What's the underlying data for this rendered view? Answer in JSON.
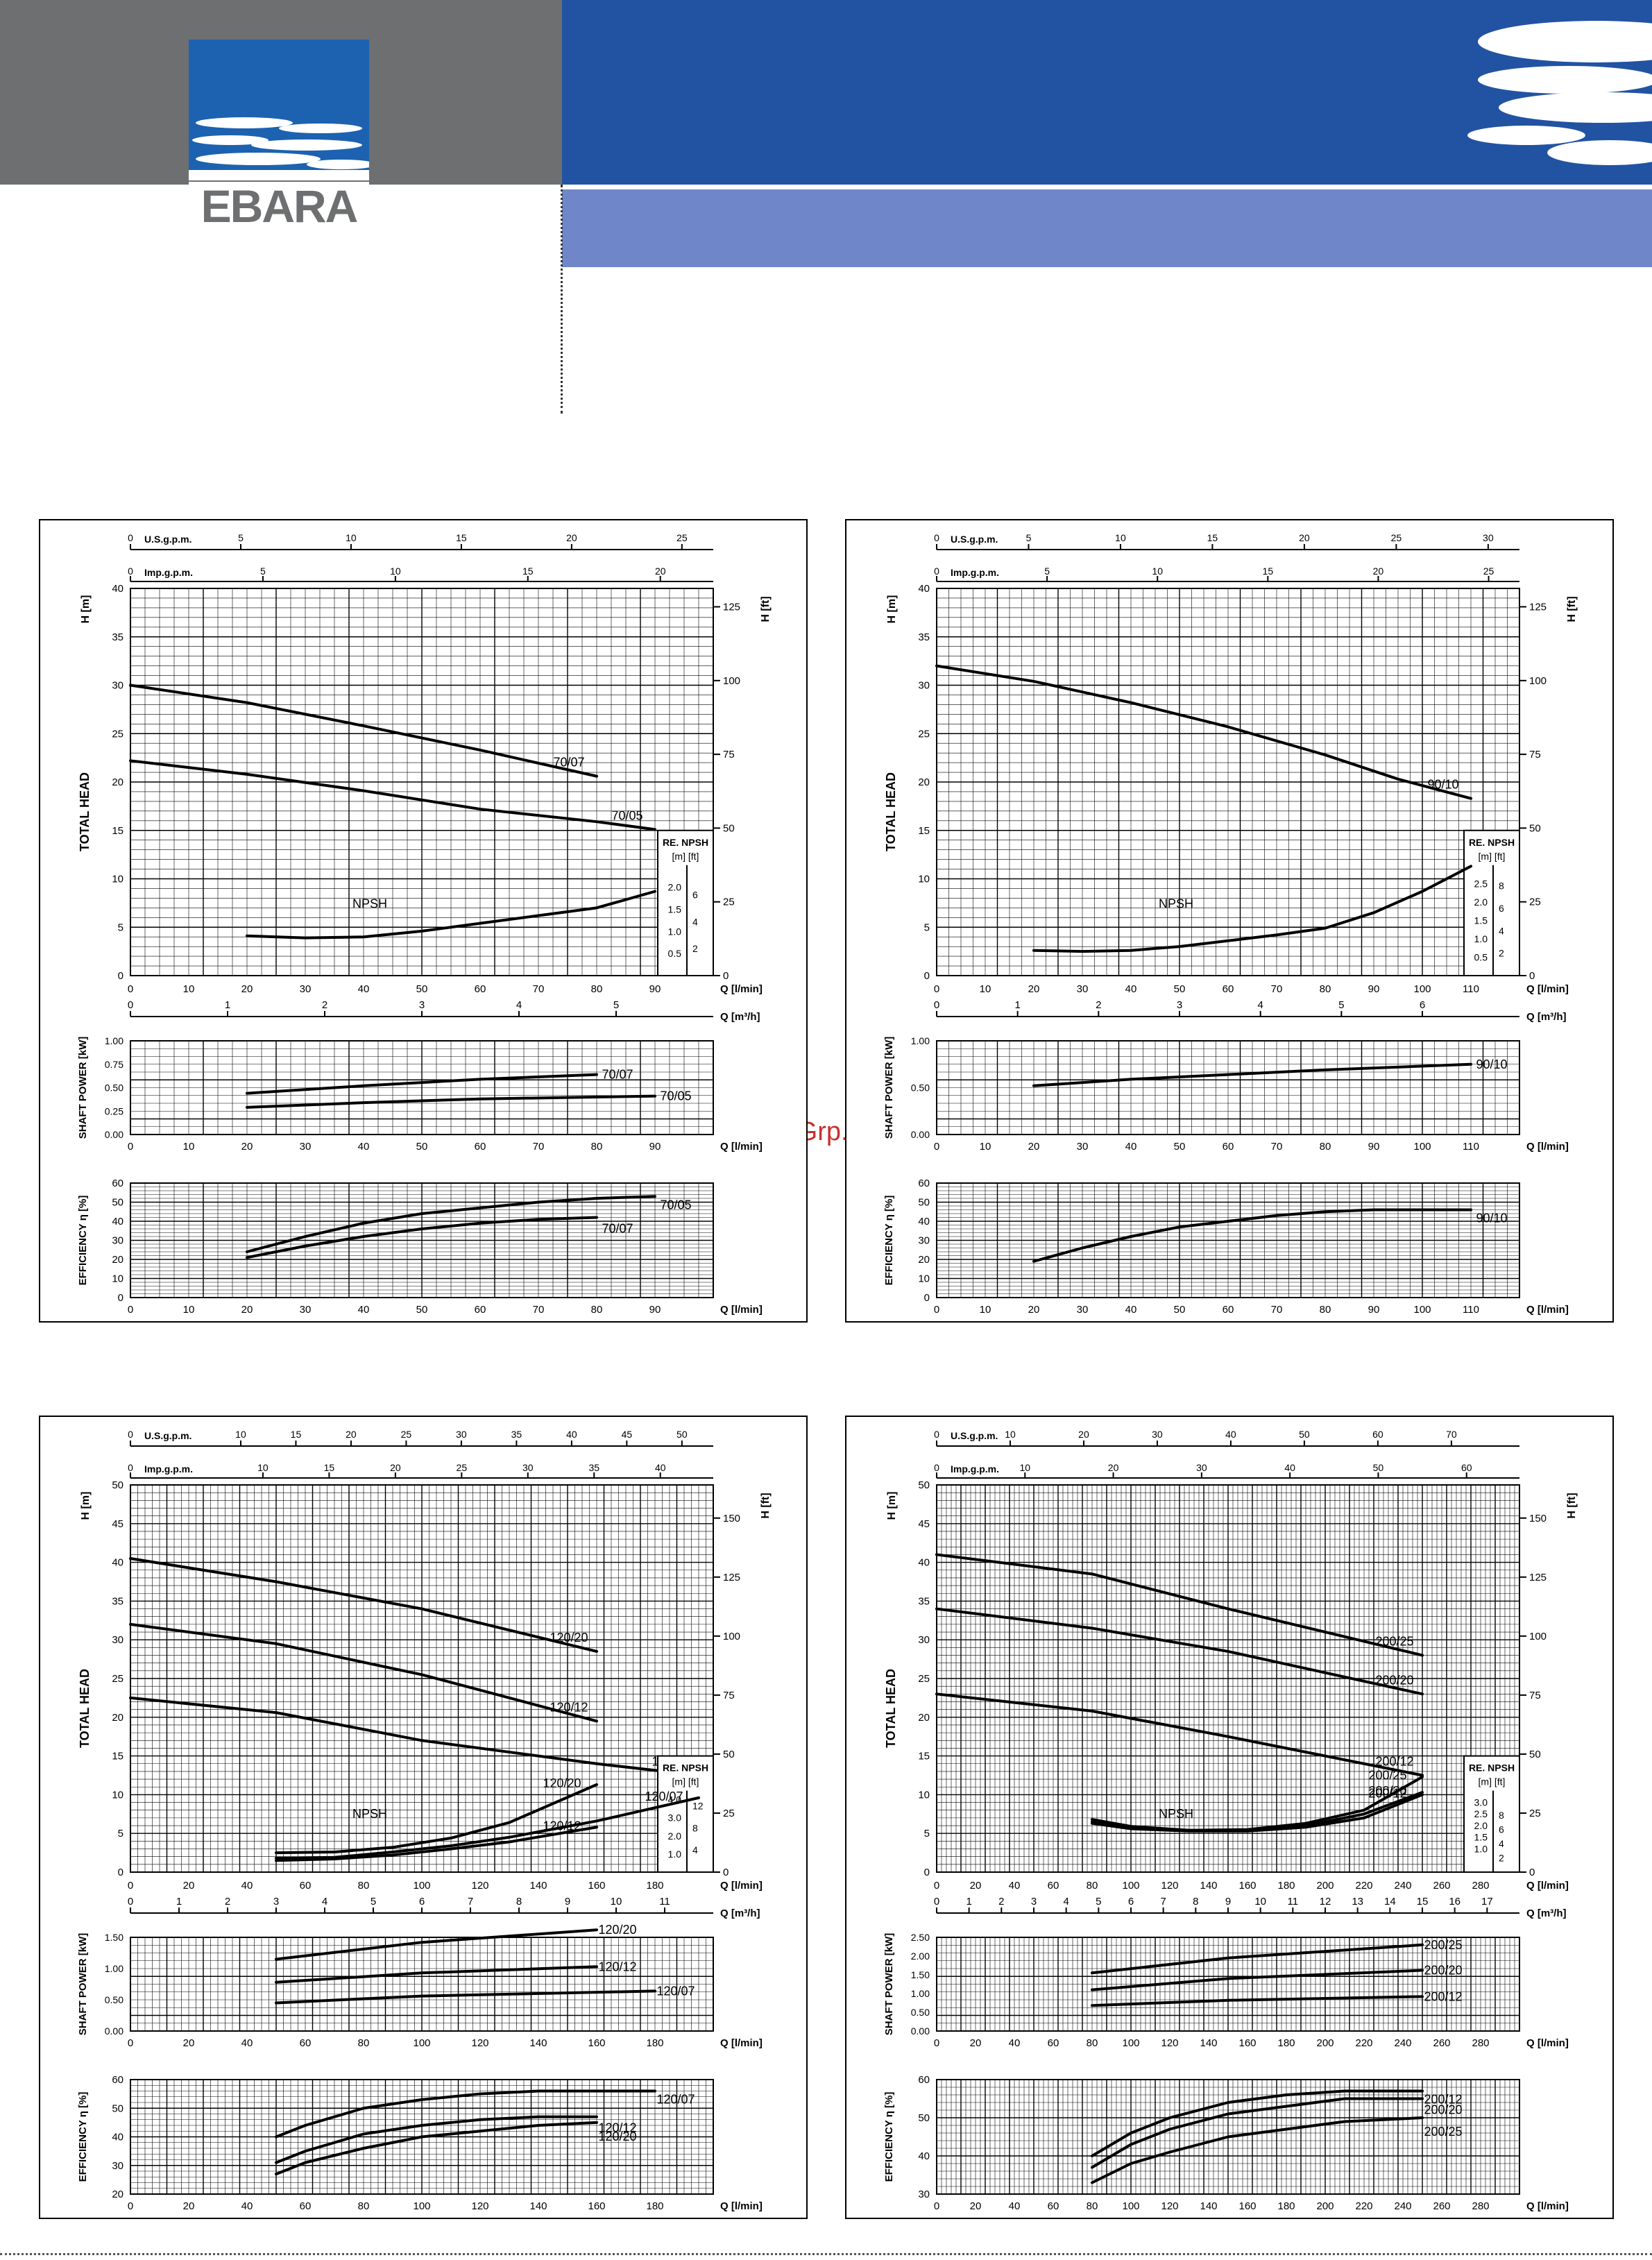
{
  "brand": {
    "logo_text": "EBARA",
    "logo_color": "#1c62b0",
    "band_blue": "#2253a3",
    "band_light": "#6f86c8",
    "band_grey": "#6e6f71"
  },
  "watermark": "McGrp.Ru",
  "labels": {
    "usgpm": "U.S.g.p.m.",
    "impgpm": "Imp.g.p.m.",
    "h_m": "H [m]",
    "h_ft": "H [ft]",
    "total_head": "TOTAL HEAD",
    "q_lmin": "Q [l/min]",
    "q_m3h": "Q [m³/h]",
    "shaft_power": "SHAFT POWER [kW]",
    "efficiency": "EFFICIENCY η [%]",
    "npsh": "NPSH",
    "re_npsh": "RE. NPSH",
    "npsh_units": "[m] [ft]"
  },
  "chart_data": [
    {
      "type": "line",
      "q_range": [
        0,
        100
      ],
      "q_ticks": [
        0,
        10,
        20,
        30,
        40,
        50,
        60,
        70,
        80,
        90
      ],
      "usgpm_ticks": [
        0,
        5,
        10,
        15,
        20,
        25
      ],
      "impgpm_ticks": [
        0,
        5,
        10,
        15,
        20
      ],
      "m3h_ticks": [
        0,
        1,
        2,
        3,
        4,
        5
      ],
      "head": {
        "ylim": [
          0,
          40
        ],
        "ticks": [
          0,
          5,
          10,
          15,
          20,
          25,
          30,
          35,
          40
        ],
        "ft_ticks": [
          0,
          25,
          50,
          75,
          100,
          125
        ],
        "series": [
          {
            "name": "70/07",
            "x": [
              0,
              20,
              40,
              60,
              80
            ],
            "y": [
              30,
              28.2,
              25.8,
              23.3,
              20.6
            ]
          },
          {
            "name": "70/05",
            "x": [
              0,
              20,
              40,
              60,
              80,
              90
            ],
            "y": [
              22.2,
              20.8,
              19.1,
              17.2,
              15.9,
              15.1
            ]
          }
        ]
      },
      "npsh": {
        "x": [
          20,
          30,
          40,
          50,
          60,
          70,
          80,
          90
        ],
        "y": [
          4.1,
          3.9,
          4.0,
          4.6,
          5.4,
          6.2,
          7.0,
          8.7
        ],
        "ticks": [
          0.5,
          1.0,
          1.5,
          2.0
        ],
        "ft_ticks": [
          2,
          4,
          6
        ]
      },
      "power": {
        "ylim": [
          0,
          1.0
        ],
        "ticks": [
          0,
          0.25,
          0.5,
          0.75,
          1.0
        ],
        "series": [
          {
            "name": "70/07",
            "x": [
              20,
              40,
              60,
              80
            ],
            "y": [
              0.44,
              0.52,
              0.59,
              0.64
            ]
          },
          {
            "name": "70/05",
            "x": [
              20,
              40,
              60,
              80,
              90
            ],
            "y": [
              0.29,
              0.34,
              0.38,
              0.4,
              0.41
            ]
          }
        ]
      },
      "efficiency": {
        "ylim": [
          0,
          60
        ],
        "ticks": [
          0,
          10,
          20,
          30,
          40,
          50,
          60
        ],
        "series": [
          {
            "name": "70/05",
            "x": [
              20,
              30,
              40,
              50,
              60,
              70,
              80,
              90
            ],
            "y": [
              24,
              32,
              39,
              44,
              47,
              50,
              52,
              53
            ]
          },
          {
            "name": "70/07",
            "x": [
              20,
              30,
              40,
              50,
              60,
              70,
              80
            ],
            "y": [
              21,
              27,
              32,
              36,
              39,
              41,
              42
            ]
          }
        ]
      }
    },
    {
      "type": "line",
      "q_range": [
        0,
        120
      ],
      "q_ticks": [
        0,
        10,
        20,
        30,
        40,
        50,
        60,
        70,
        80,
        90,
        100,
        110
      ],
      "usgpm_ticks": [
        0,
        5,
        10,
        15,
        20,
        25,
        30
      ],
      "impgpm_ticks": [
        0,
        5,
        10,
        15,
        20,
        25
      ],
      "m3h_ticks": [
        0,
        1,
        2,
        3,
        4,
        5,
        6
      ],
      "head": {
        "ylim": [
          0,
          40
        ],
        "ticks": [
          0,
          5,
          10,
          15,
          20,
          25,
          30,
          35,
          40
        ],
        "ft_ticks": [
          0,
          25,
          50,
          75,
          100,
          125
        ],
        "series": [
          {
            "name": "90/10",
            "x": [
              0,
              20,
              40,
              60,
              80,
              95,
              110
            ],
            "y": [
              32,
              30.4,
              28.2,
              25.7,
              22.8,
              20.3,
              18.3
            ]
          }
        ]
      },
      "npsh": {
        "x": [
          20,
          30,
          40,
          50,
          60,
          70,
          80,
          90,
          100,
          110
        ],
        "y": [
          2.6,
          2.5,
          2.6,
          3.0,
          3.6,
          4.2,
          4.9,
          6.5,
          8.7,
          11.3
        ],
        "ticks": [
          0.5,
          1.0,
          1.5,
          2.0,
          2.5
        ],
        "ft_ticks": [
          2,
          4,
          6,
          8
        ]
      },
      "power": {
        "ylim": [
          0,
          1.0
        ],
        "ticks": [
          0,
          0.5,
          1.0
        ],
        "series": [
          {
            "name": "90/10",
            "x": [
              20,
              40,
              60,
              80,
              110
            ],
            "y": [
              0.52,
              0.59,
              0.64,
              0.69,
              0.75
            ]
          }
        ]
      },
      "efficiency": {
        "ylim": [
          0,
          60
        ],
        "ticks": [
          0,
          10,
          20,
          30,
          40,
          50,
          60
        ],
        "series": [
          {
            "name": "90/10",
            "x": [
              20,
              30,
              40,
              50,
              60,
              70,
              80,
              90,
              100,
              110
            ],
            "y": [
              19,
              26,
              32,
              37,
              40,
              43,
              45,
              46,
              46,
              46
            ]
          }
        ]
      }
    },
    {
      "type": "line",
      "q_range": [
        0,
        200
      ],
      "q_ticks": [
        0,
        20,
        40,
        60,
        80,
        100,
        120,
        140,
        160,
        180
      ],
      "usgpm_ticks": [
        0,
        10,
        15,
        20,
        25,
        30,
        35,
        40,
        45,
        50
      ],
      "impgpm_ticks": [
        0,
        10,
        15,
        20,
        25,
        30,
        35,
        40
      ],
      "m3h_ticks": [
        0,
        1,
        2,
        3,
        4,
        5,
        6,
        7,
        8,
        9,
        10,
        11
      ],
      "head": {
        "ylim": [
          0,
          50
        ],
        "ticks": [
          0,
          5,
          10,
          15,
          20,
          25,
          30,
          35,
          40,
          45,
          50
        ],
        "ft_ticks": [
          0,
          25,
          50,
          75,
          100,
          125,
          150
        ],
        "series": [
          {
            "name": "120/20",
            "x": [
              0,
              50,
              100,
              160
            ],
            "y": [
              40.5,
              37.5,
              34,
              28.5
            ]
          },
          {
            "name": "120/12",
            "x": [
              0,
              50,
              100,
              160
            ],
            "y": [
              32,
              29.5,
              25.5,
              19.5
            ]
          },
          {
            "name": "120/07",
            "x": [
              0,
              50,
              100,
              160,
              195
            ],
            "y": [
              22.5,
              20.6,
              17,
              14,
              12.5
            ]
          }
        ]
      },
      "npsh_series": [
        {
          "name": "120/20",
          "x": [
            50,
            70,
            90,
            110,
            130,
            160
          ],
          "y": [
            2.5,
            2.6,
            3.2,
            4.4,
            6.4,
            11.3
          ]
        },
        {
          "name": "120/07",
          "x": [
            50,
            70,
            90,
            110,
            130,
            160,
            195
          ],
          "y": [
            1.8,
            1.9,
            2.6,
            3.4,
            4.5,
            6.6,
            9.6
          ]
        },
        {
          "name": "120/12",
          "x": [
            50,
            70,
            90,
            110,
            130,
            160
          ],
          "y": [
            1.5,
            1.7,
            2.2,
            3.0,
            3.9,
            5.8
          ]
        }
      ],
      "npsh_ticks": [
        1.0,
        2.0,
        3.0,
        4.0
      ],
      "npsh_ft_ticks": [
        4,
        8,
        12
      ],
      "power": {
        "ylim": [
          0,
          1.5
        ],
        "ticks": [
          0,
          0.5,
          1.0,
          1.5
        ],
        "series": [
          {
            "name": "120/20",
            "x": [
              50,
              100,
              160
            ],
            "y": [
              1.15,
              1.42,
              1.62
            ]
          },
          {
            "name": "120/12",
            "x": [
              50,
              100,
              160
            ],
            "y": [
              0.78,
              0.93,
              1.03
            ]
          },
          {
            "name": "120/07",
            "x": [
              50,
              100,
              180
            ],
            "y": [
              0.45,
              0.56,
              0.64
            ]
          }
        ]
      },
      "efficiency": {
        "ylim": [
          20,
          60
        ],
        "ticks": [
          20,
          30,
          40,
          50,
          60
        ],
        "series": [
          {
            "name": "120/07",
            "x": [
              50,
              60,
              80,
              100,
              120,
              140,
              180
            ],
            "y": [
              40,
              44,
              50,
              53,
              55,
              56,
              56
            ]
          },
          {
            "name": "120/12",
            "x": [
              50,
              60,
              80,
              100,
              120,
              140,
              160
            ],
            "y": [
              31,
              35,
              41,
              44,
              46,
              47,
              47
            ]
          },
          {
            "name": "120/20",
            "x": [
              50,
              60,
              80,
              100,
              120,
              140,
              160
            ],
            "y": [
              27,
              31,
              36,
              40,
              42,
              44,
              45
            ]
          }
        ]
      }
    },
    {
      "type": "line",
      "q_range": [
        0,
        300
      ],
      "q_ticks": [
        0,
        20,
        40,
        60,
        80,
        100,
        120,
        140,
        160,
        180,
        200,
        220,
        240,
        260,
        280
      ],
      "usgpm_ticks": [
        0,
        10,
        20,
        30,
        40,
        50,
        60,
        70
      ],
      "impgpm_ticks": [
        0,
        10,
        20,
        30,
        40,
        50,
        60
      ],
      "m3h_ticks": [
        0,
        1,
        2,
        3,
        4,
        5,
        6,
        7,
        8,
        9,
        10,
        11,
        12,
        13,
        14,
        15,
        16,
        17
      ],
      "head": {
        "ylim": [
          0,
          50
        ],
        "ticks": [
          0,
          5,
          10,
          15,
          20,
          25,
          30,
          35,
          40,
          45,
          50
        ],
        "ft_ticks": [
          0,
          25,
          50,
          75,
          100,
          125,
          150
        ],
        "series": [
          {
            "name": "200/25",
            "x": [
              0,
              80,
              150,
              250
            ],
            "y": [
              41,
              38.5,
              34,
              28
            ]
          },
          {
            "name": "200/20",
            "x": [
              0,
              80,
              150,
              250
            ],
            "y": [
              34,
              31.5,
              28.5,
              23
            ]
          },
          {
            "name": "200/12",
            "x": [
              0,
              80,
              150,
              250
            ],
            "y": [
              23,
              20.8,
              17.5,
              12.5
            ]
          }
        ]
      },
      "npsh_series": [
        {
          "name": "200/25",
          "x": [
            80,
            100,
            130,
            160,
            190,
            220,
            250
          ],
          "y": [
            6.8,
            5.9,
            5.4,
            5.5,
            6.3,
            8.0,
            12.3
          ]
        },
        {
          "name": "200/20",
          "x": [
            80,
            100,
            130,
            160,
            190,
            220,
            250
          ],
          "y": [
            6.5,
            5.8,
            5.4,
            5.4,
            6.0,
            7.5,
            10.3
          ]
        },
        {
          "name": "200/12",
          "x": [
            80,
            100,
            130,
            160,
            190,
            220,
            250
          ],
          "y": [
            6.3,
            5.6,
            5.3,
            5.3,
            5.8,
            7.0,
            10.0
          ]
        }
      ],
      "npsh_ticks": [
        1.0,
        1.5,
        2.0,
        2.5,
        3.0
      ],
      "npsh_ft_ticks": [
        2,
        4,
        6,
        8
      ],
      "power": {
        "ylim": [
          0,
          2.5
        ],
        "ticks": [
          0,
          0.5,
          1.0,
          1.5,
          2.0,
          2.5
        ],
        "series": [
          {
            "name": "200/25",
            "x": [
              80,
              150,
              250
            ],
            "y": [
              1.55,
              1.95,
              2.3
            ]
          },
          {
            "name": "200/20",
            "x": [
              80,
              150,
              250
            ],
            "y": [
              1.1,
              1.4,
              1.62
            ]
          },
          {
            "name": "200/12",
            "x": [
              80,
              150,
              250
            ],
            "y": [
              0.68,
              0.82,
              0.92
            ]
          }
        ]
      },
      "efficiency": {
        "ylim": [
          30,
          60
        ],
        "ticks": [
          30,
          40,
          50,
          60
        ],
        "series": [
          {
            "name": "200/12",
            "x": [
              80,
              100,
              120,
              150,
              180,
              210,
              250
            ],
            "y": [
              40,
              46,
              50,
              54,
              56,
              57,
              57
            ]
          },
          {
            "name": "200/20",
            "x": [
              80,
              100,
              120,
              150,
              180,
              210,
              250
            ],
            "y": [
              37,
              43,
              47,
              51,
              53,
              55,
              55
            ]
          },
          {
            "name": "200/25",
            "x": [
              80,
              100,
              120,
              150,
              180,
              210,
              250
            ],
            "y": [
              33,
              38,
              41,
              45,
              47,
              49,
              50
            ]
          }
        ]
      }
    }
  ]
}
